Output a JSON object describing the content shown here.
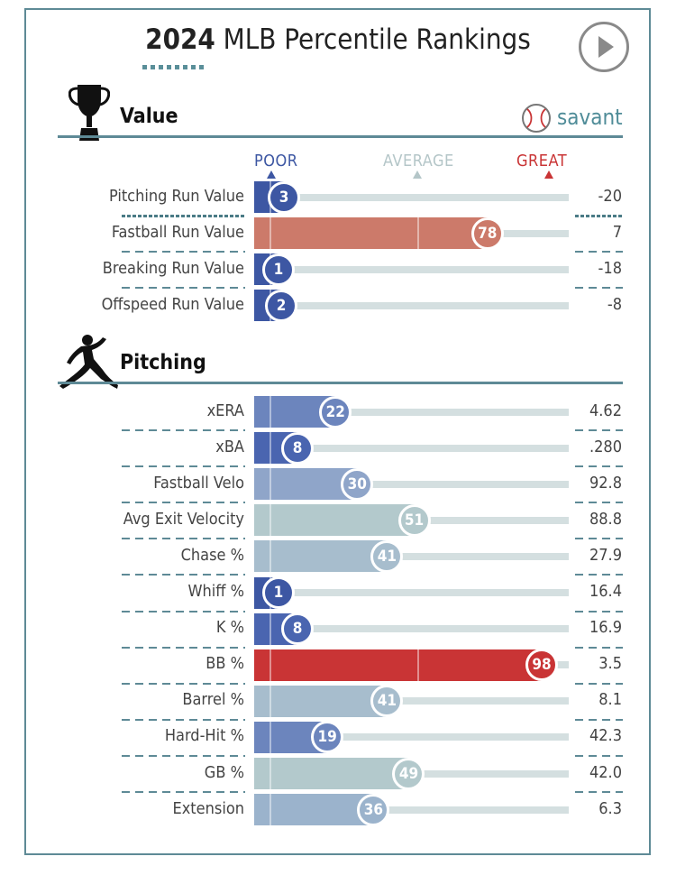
{
  "header": {
    "title_year": "2024",
    "title_rest": " MLB Percentile Rankings",
    "savant_label": "savant"
  },
  "scale": {
    "poor": "POOR",
    "average": "AVERAGE",
    "great": "GREAT"
  },
  "chart_data": {
    "type": "bar",
    "title": "2024 MLB Percentile Rankings",
    "xlim": [
      0,
      100
    ],
    "sections": [
      {
        "name": "Value",
        "rows": [
          {
            "label": "Pitching Run Value",
            "percentile": 3,
            "value": "-20",
            "color": "#3d57a3",
            "highlight": true
          },
          {
            "label": "Fastball Run Value",
            "percentile": 78,
            "value": "7",
            "color": "#cc7a6a",
            "highlight": false
          },
          {
            "label": "Breaking Run Value",
            "percentile": 1,
            "value": "-18",
            "color": "#3d57a3",
            "highlight": false
          },
          {
            "label": "Offspeed Run Value",
            "percentile": 2,
            "value": "-8",
            "color": "#3d57a3",
            "highlight": false
          }
        ]
      },
      {
        "name": "Pitching",
        "rows": [
          {
            "label": "xERA",
            "percentile": 22,
            "value": "4.62",
            "color": "#6c85bd",
            "highlight": false
          },
          {
            "label": "xBA",
            "percentile": 8,
            "value": ".280",
            "color": "#4a65b0",
            "highlight": false
          },
          {
            "label": "Fastball Velo",
            "percentile": 30,
            "value": "92.8",
            "color": "#8fa5c9",
            "highlight": false
          },
          {
            "label": "Avg Exit Velocity",
            "percentile": 51,
            "value": "88.8",
            "color": "#b3c9cc",
            "highlight": false
          },
          {
            "label": "Chase %",
            "percentile": 41,
            "value": "27.9",
            "color": "#a7bdcd",
            "highlight": false
          },
          {
            "label": "Whiff %",
            "percentile": 1,
            "value": "16.4",
            "color": "#3d57a3",
            "highlight": false
          },
          {
            "label": "K %",
            "percentile": 8,
            "value": "16.9",
            "color": "#4a65b0",
            "highlight": false
          },
          {
            "label": "BB %",
            "percentile": 98,
            "value": "3.5",
            "color": "#c93435",
            "highlight": false
          },
          {
            "label": "Barrel %",
            "percentile": 41,
            "value": "8.1",
            "color": "#a7bdcd",
            "highlight": false
          },
          {
            "label": "Hard-Hit %",
            "percentile": 19,
            "value": "42.3",
            "color": "#6c85bd",
            "highlight": false
          },
          {
            "label": "GB %",
            "percentile": 49,
            "value": "42.0",
            "color": "#b3c9cc",
            "highlight": false
          },
          {
            "label": "Extension",
            "percentile": 36,
            "value": "6.3",
            "color": "#9bb3cc",
            "highlight": false
          }
        ]
      }
    ]
  }
}
